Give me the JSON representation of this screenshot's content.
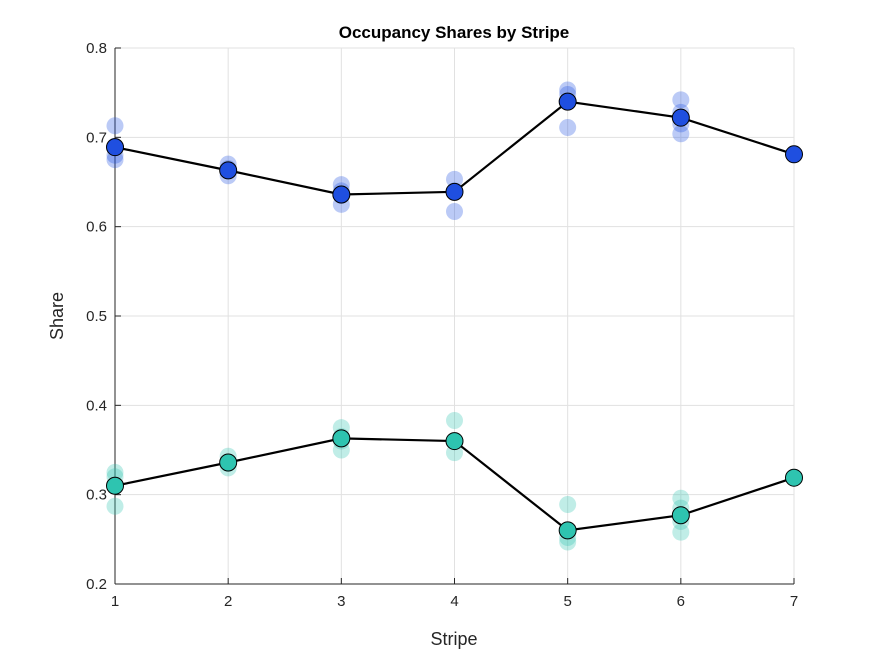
{
  "chart_data": {
    "type": "scatter",
    "title": "Occupancy Shares by Stripe",
    "xlabel": "Stripe",
    "ylabel": "Share",
    "xlim": [
      1,
      7
    ],
    "ylim": [
      0.2,
      0.8
    ],
    "x_ticks": [
      1,
      2,
      3,
      4,
      5,
      6,
      7
    ],
    "y_ticks": [
      0.2,
      0.3,
      0.4,
      0.5,
      0.6,
      0.7,
      0.8
    ],
    "y_tick_labels": [
      "0.2",
      "0.3",
      "0.4",
      "0.5",
      "0.6",
      "0.7",
      "0.8"
    ],
    "grid": true,
    "series": [
      {
        "color": "#1f4fe0",
        "points": [
          {
            "x": 1,
            "y": [
              0.713,
              0.69,
              0.675,
              0.68
            ]
          },
          {
            "x": 2,
            "y": [
              0.67,
              0.665,
              0.657
            ]
          },
          {
            "x": 3,
            "y": [
              0.647,
              0.64,
              0.625,
              0.635
            ]
          },
          {
            "x": 4,
            "y": [
              0.653,
              0.64,
              0.617
            ]
          },
          {
            "x": 5,
            "y": [
              0.753,
              0.748,
              0.74,
              0.711
            ]
          },
          {
            "x": 6,
            "y": [
              0.742,
              0.728,
              0.715,
              0.704
            ]
          },
          {
            "x": 7,
            "y": [
              0.681
            ]
          }
        ],
        "means": [
          0.689,
          0.663,
          0.636,
          0.639,
          0.74,
          0.722,
          0.681
        ]
      },
      {
        "color": "#2ec4b0",
        "points": [
          {
            "x": 1,
            "y": [
              0.325,
              0.32,
              0.31,
              0.287
            ]
          },
          {
            "x": 2,
            "y": [
              0.343,
              0.335,
              0.33
            ]
          },
          {
            "x": 3,
            "y": [
              0.375,
              0.365,
              0.35,
              0.36
            ]
          },
          {
            "x": 4,
            "y": [
              0.383,
              0.36,
              0.347
            ]
          },
          {
            "x": 5,
            "y": [
              0.289,
              0.26,
              0.252,
              0.247
            ]
          },
          {
            "x": 6,
            "y": [
              0.296,
              0.285,
              0.27,
              0.258
            ]
          },
          {
            "x": 7,
            "y": [
              0.319
            ]
          }
        ],
        "means": [
          0.31,
          0.336,
          0.363,
          0.36,
          0.26,
          0.277,
          0.319
        ]
      }
    ]
  }
}
